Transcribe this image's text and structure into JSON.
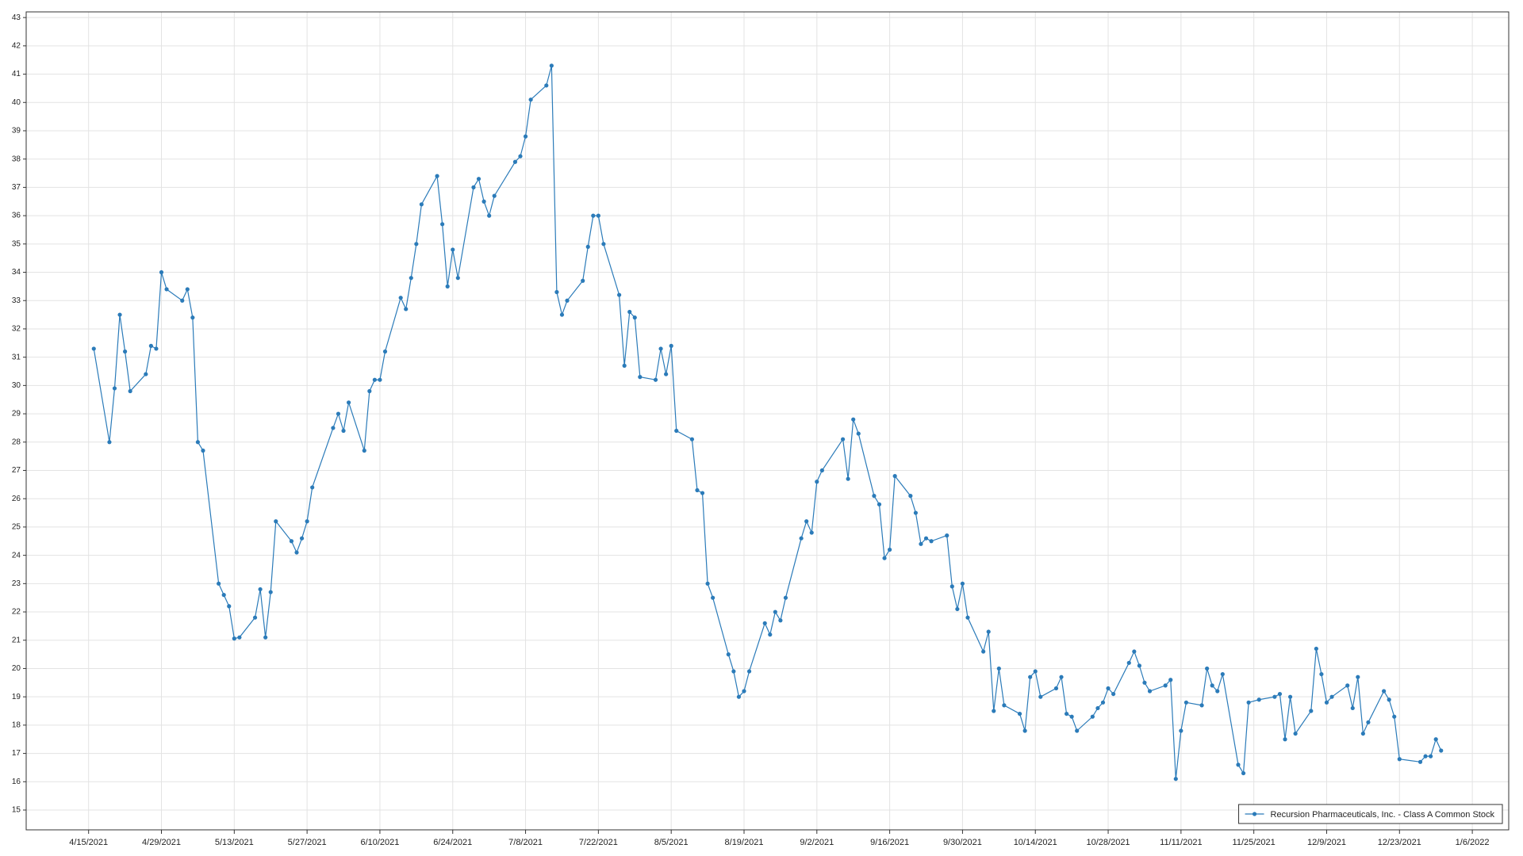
{
  "chart_data": {
    "type": "line",
    "x": [
      "4/16/2021",
      "4/19/2021",
      "4/20/2021",
      "4/21/2021",
      "4/22/2021",
      "4/23/2021",
      "4/26/2021",
      "4/27/2021",
      "4/28/2021",
      "4/29/2021",
      "4/30/2021",
      "5/3/2021",
      "5/4/2021",
      "5/5/2021",
      "5/6/2021",
      "5/7/2021",
      "5/10/2021",
      "5/11/2021",
      "5/12/2021",
      "5/13/2021",
      "5/14/2021",
      "5/17/2021",
      "5/18/2021",
      "5/19/2021",
      "5/20/2021",
      "5/21/2021",
      "5/24/2021",
      "5/25/2021",
      "5/26/2021",
      "5/27/2021",
      "5/28/2021",
      "6/1/2021",
      "6/2/2021",
      "6/3/2021",
      "6/4/2021",
      "6/7/2021",
      "6/8/2021",
      "6/9/2021",
      "6/10/2021",
      "6/11/2021",
      "6/14/2021",
      "6/15/2021",
      "6/16/2021",
      "6/17/2021",
      "6/18/2021",
      "6/21/2021",
      "6/22/2021",
      "6/23/2021",
      "6/24/2021",
      "6/25/2021",
      "6/28/2021",
      "6/29/2021",
      "6/30/2021",
      "7/1/2021",
      "7/2/2021",
      "7/6/2021",
      "7/7/2021",
      "7/8/2021",
      "7/9/2021",
      "7/12/2021",
      "7/13/2021",
      "7/14/2021",
      "7/15/2021",
      "7/16/2021",
      "7/19/2021",
      "7/20/2021",
      "7/21/2021",
      "7/22/2021",
      "7/23/2021",
      "7/26/2021",
      "7/27/2021",
      "7/28/2021",
      "7/29/2021",
      "7/30/2021",
      "8/2/2021",
      "8/3/2021",
      "8/4/2021",
      "8/5/2021",
      "8/6/2021",
      "8/9/2021",
      "8/10/2021",
      "8/11/2021",
      "8/12/2021",
      "8/13/2021",
      "8/16/2021",
      "8/17/2021",
      "8/18/2021",
      "8/19/2021",
      "8/20/2021",
      "8/23/2021",
      "8/24/2021",
      "8/25/2021",
      "8/26/2021",
      "8/27/2021",
      "8/30/2021",
      "8/31/2021",
      "9/1/2021",
      "9/2/2021",
      "9/3/2021",
      "9/7/2021",
      "9/8/2021",
      "9/9/2021",
      "9/10/2021",
      "9/13/2021",
      "9/14/2021",
      "9/15/2021",
      "9/16/2021",
      "9/17/2021",
      "9/20/2021",
      "9/21/2021",
      "9/22/2021",
      "9/23/2021",
      "9/24/2021",
      "9/27/2021",
      "9/28/2021",
      "9/29/2021",
      "9/30/2021",
      "10/1/2021",
      "10/4/2021",
      "10/5/2021",
      "10/6/2021",
      "10/7/2021",
      "10/8/2021",
      "10/11/2021",
      "10/12/2021",
      "10/13/2021",
      "10/14/2021",
      "10/15/2021",
      "10/18/2021",
      "10/19/2021",
      "10/20/2021",
      "10/21/2021",
      "10/22/2021",
      "10/25/2021",
      "10/26/2021",
      "10/27/2021",
      "10/28/2021",
      "10/29/2021",
      "11/1/2021",
      "11/2/2021",
      "11/3/2021",
      "11/4/2021",
      "11/5/2021",
      "11/8/2021",
      "11/9/2021",
      "11/10/2021",
      "11/11/2021",
      "11/12/2021",
      "11/15/2021",
      "11/16/2021",
      "11/17/2021",
      "11/18/2021",
      "11/19/2021",
      "11/22/2021",
      "11/23/2021",
      "11/24/2021",
      "11/26/2021",
      "11/29/2021",
      "11/30/2021",
      "12/1/2021",
      "12/2/2021",
      "12/3/2021",
      "12/6/2021",
      "12/7/2021",
      "12/8/2021",
      "12/9/2021",
      "12/10/2021",
      "12/13/2021",
      "12/14/2021",
      "12/15/2021",
      "12/16/2021",
      "12/17/2021",
      "12/20/2021",
      "12/21/2021",
      "12/22/2021",
      "12/23/2021",
      "12/27/2021",
      "12/28/2021",
      "12/29/2021",
      "12/30/2021",
      "12/31/2021"
    ],
    "series": [
      {
        "name": "Recursion Pharmaceuticals, Inc. - Class A Common Stock",
        "color": "#2b7bb9",
        "values": [
          31.3,
          28.0,
          29.9,
          32.5,
          31.2,
          29.8,
          30.4,
          31.4,
          31.3,
          34.0,
          33.4,
          33.0,
          33.4,
          32.4,
          28.0,
          27.7,
          23.0,
          22.6,
          22.2,
          21.06,
          21.1,
          21.8,
          22.8,
          21.1,
          22.7,
          25.2,
          24.5,
          24.1,
          24.6,
          25.2,
          26.4,
          28.5,
          29.0,
          28.4,
          29.4,
          27.7,
          29.8,
          30.2,
          30.2,
          31.2,
          33.1,
          32.7,
          33.8,
          35.0,
          36.4,
          37.4,
          35.7,
          33.5,
          34.8,
          33.8,
          37.0,
          37.3,
          36.5,
          36.0,
          36.7,
          37.9,
          38.1,
          38.8,
          40.1,
          40.6,
          41.3,
          33.3,
          32.5,
          33.0,
          33.7,
          34.9,
          36.0,
          36.0,
          35.0,
          33.2,
          30.7,
          32.6,
          32.4,
          30.3,
          30.2,
          31.3,
          30.4,
          31.4,
          28.4,
          28.1,
          26.3,
          26.2,
          23.0,
          22.5,
          20.5,
          19.9,
          19.0,
          19.2,
          19.9,
          21.6,
          21.2,
          22.0,
          21.7,
          22.5,
          24.6,
          25.2,
          24.8,
          26.6,
          27.0,
          28.1,
          26.7,
          28.8,
          28.3,
          26.1,
          25.8,
          23.9,
          24.2,
          26.8,
          26.1,
          25.5,
          24.4,
          24.6,
          24.5,
          24.7,
          22.9,
          22.1,
          23.0,
          21.8,
          20.6,
          21.3,
          18.5,
          20.0,
          18.7,
          18.4,
          17.8,
          19.7,
          19.9,
          19.0,
          19.3,
          19.7,
          18.4,
          18.3,
          17.8,
          18.3,
          18.6,
          18.8,
          19.3,
          19.1,
          20.2,
          20.6,
          20.1,
          19.5,
          19.2,
          19.4,
          19.6,
          16.1,
          17.8,
          18.8,
          18.7,
          20.0,
          19.4,
          19.2,
          19.8,
          16.6,
          16.3,
          18.8,
          18.9,
          19.0,
          19.1,
          17.5,
          19.0,
          17.7,
          18.5,
          20.7,
          19.8,
          18.8,
          19.0,
          19.4,
          18.6,
          19.7,
          17.7,
          18.1,
          19.2,
          18.9,
          18.3,
          16.8,
          16.7,
          16.9,
          16.9,
          17.5,
          17.1
        ]
      }
    ],
    "xlim": [
      "4/3/2021",
      "1/13/2022"
    ],
    "xticks": [
      "4/15/2021",
      "4/29/2021",
      "5/13/2021",
      "5/27/2021",
      "6/10/2021",
      "6/24/2021",
      "7/8/2021",
      "7/22/2021",
      "8/5/2021",
      "8/19/2021",
      "9/2/2021",
      "9/16/2021",
      "9/30/2021",
      "10/14/2021",
      "10/28/2021",
      "11/11/2021",
      "11/25/2021",
      "12/9/2021",
      "12/23/2021",
      "1/6/2022"
    ],
    "ylim": [
      14.3,
      43.2
    ],
    "yticks": [
      15,
      16,
      17,
      18,
      19,
      20,
      21,
      22,
      23,
      24,
      25,
      26,
      27,
      28,
      29,
      30,
      31,
      32,
      33,
      34,
      35,
      36,
      37,
      38,
      39,
      40,
      41,
      42,
      43
    ],
    "grid": true,
    "markers": true,
    "legend": "lower right"
  }
}
